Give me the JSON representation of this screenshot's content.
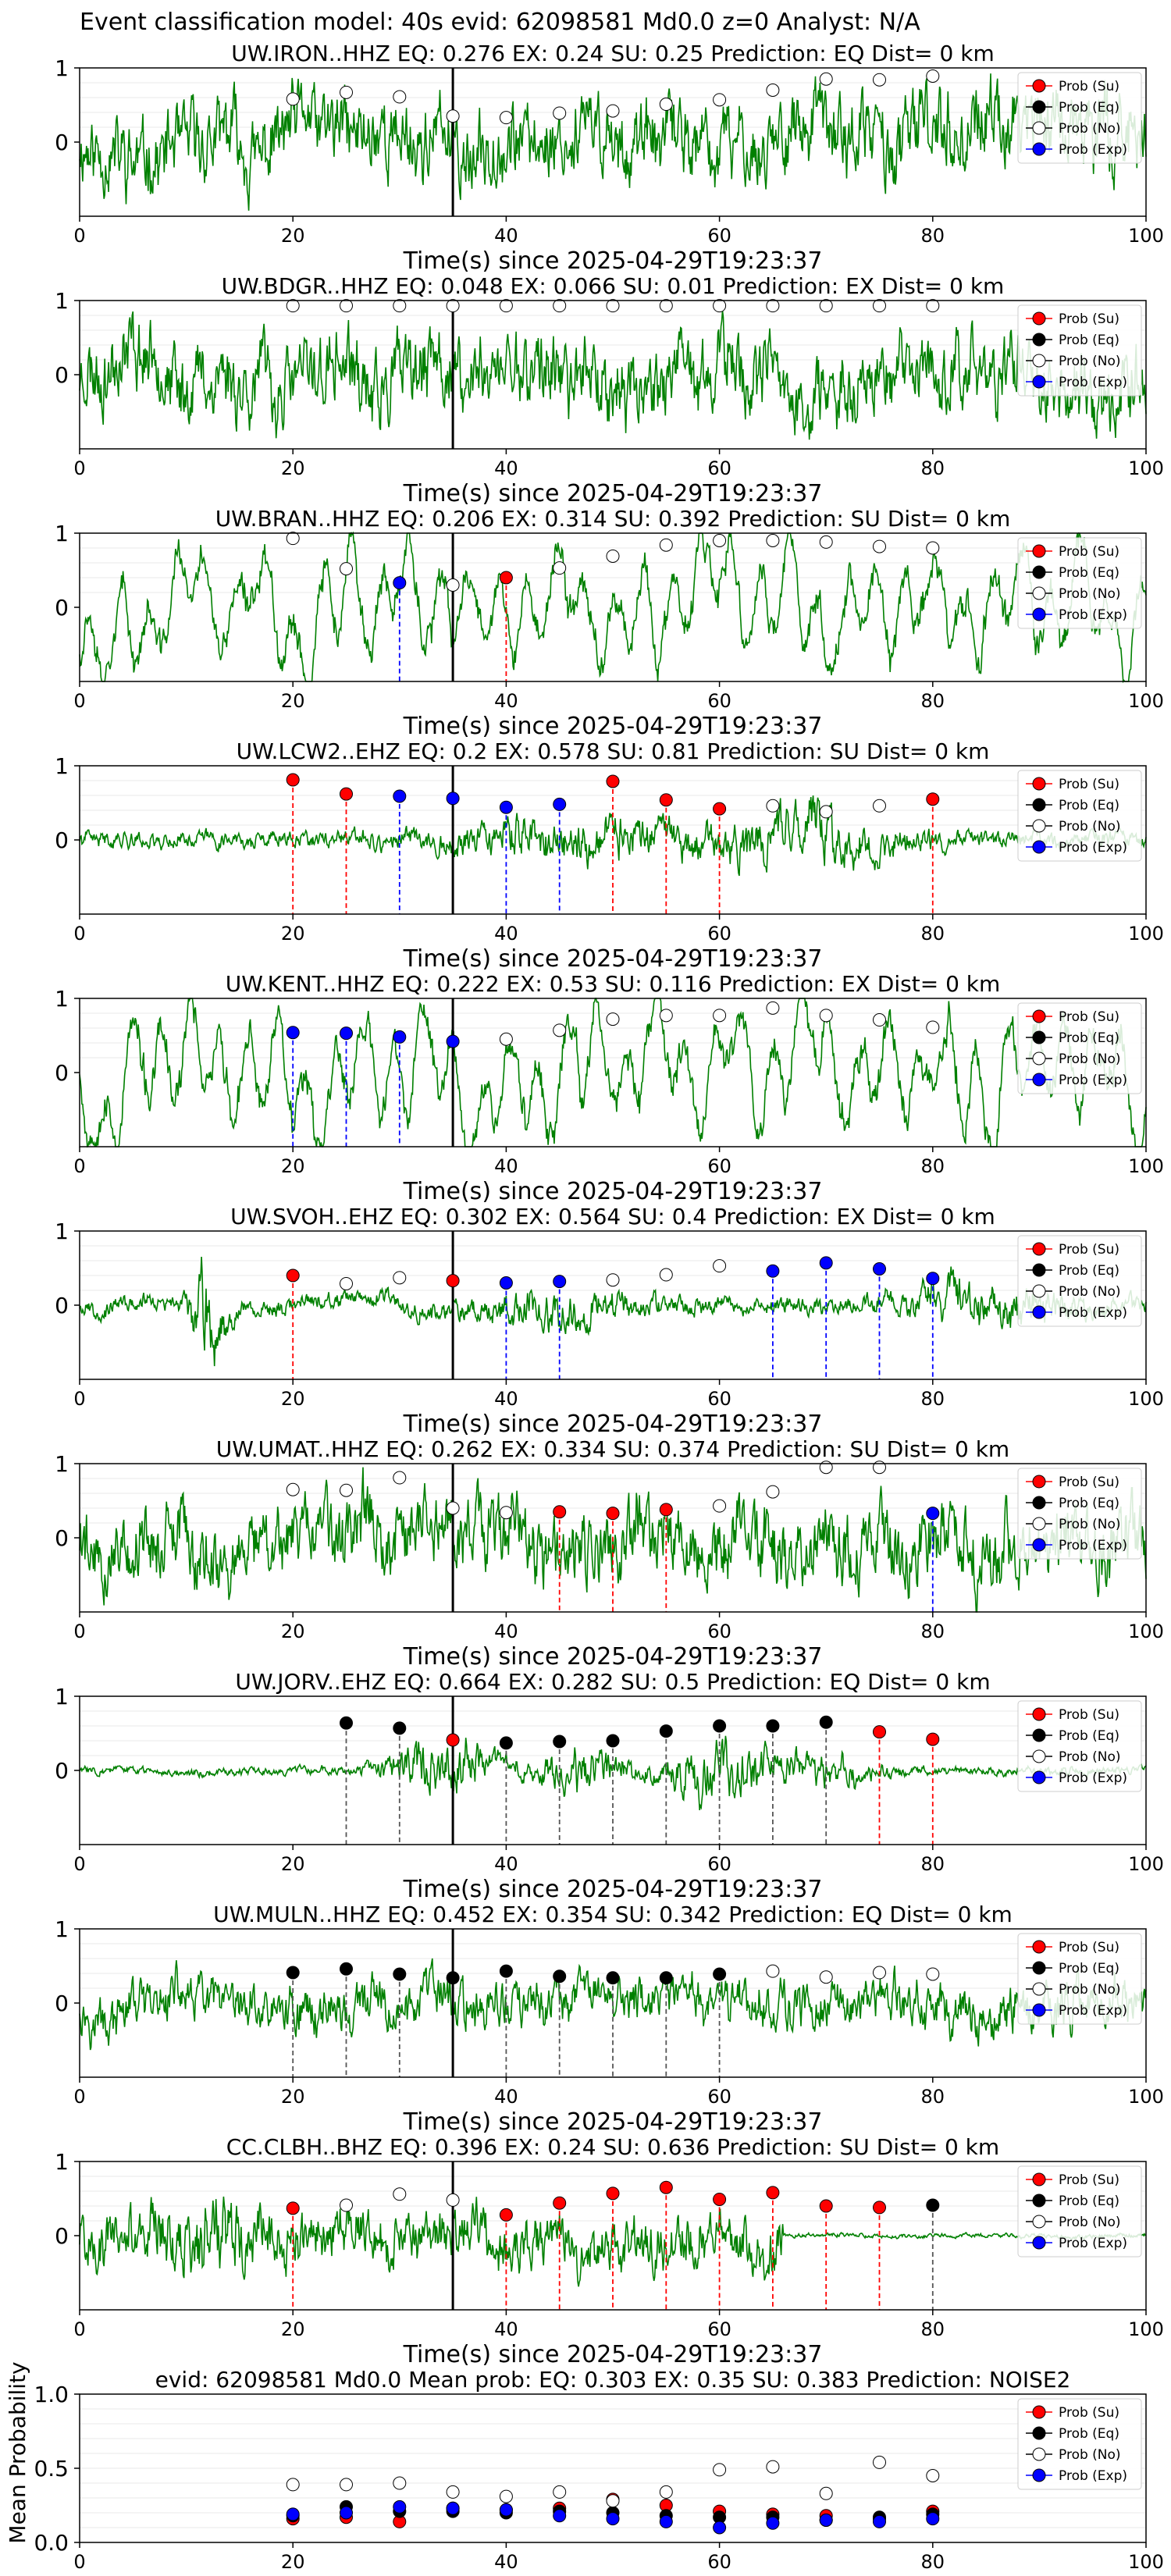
{
  "suptitle": "Event classification model: 40s evid: 62098581 Md0.0 z=0 Analyst: N/A",
  "colors": {
    "waveform": "#008000",
    "su": "#ff0000",
    "eq": "#000000",
    "no": "#ffffff",
    "exp": "#0000ff",
    "pick": "#000000"
  },
  "legend_labels": [
    "Prob (Su)",
    "Prob (Eq)",
    "Prob (No)",
    "Prob (Exp)"
  ],
  "chart_data": [
    {
      "type": "line",
      "title": "UW.IRON..HHZ   EQ: 0.276  EX: 0.24  SU: 0.25   Prediction: EQ    Dist= 0 km",
      "xlabel": "Time(s) since 2025-04-29T19:23:37",
      "xlim": [
        0,
        100
      ],
      "xticks": [
        0,
        20,
        40,
        60,
        80,
        100
      ],
      "yticks": [
        0,
        1
      ],
      "amp": 0.75,
      "style": "noise",
      "seed": 11,
      "pick": 35,
      "legend": "upper right",
      "markers": [
        {
          "x": 20,
          "p": 0.58,
          "c": "no"
        },
        {
          "x": 25,
          "p": 0.67,
          "c": "no"
        },
        {
          "x": 30,
          "p": 0.61,
          "c": "no"
        },
        {
          "x": 35,
          "p": 0.35,
          "c": "no"
        },
        {
          "x": 40,
          "p": 0.33,
          "c": "no"
        },
        {
          "x": 45,
          "p": 0.39,
          "c": "no"
        },
        {
          "x": 50,
          "p": 0.42,
          "c": "no"
        },
        {
          "x": 55,
          "p": 0.51,
          "c": "no"
        },
        {
          "x": 60,
          "p": 0.57,
          "c": "no"
        },
        {
          "x": 65,
          "p": 0.7,
          "c": "no"
        },
        {
          "x": 70,
          "p": 0.85,
          "c": "no"
        },
        {
          "x": 75,
          "p": 0.84,
          "c": "no"
        },
        {
          "x": 80,
          "p": 0.89,
          "c": "no"
        }
      ]
    },
    {
      "type": "line",
      "title": "UW.BDGR..HHZ   EQ: 0.048  EX: 0.066  SU: 0.01   Prediction: EX    Dist= 0 km",
      "xlabel": "Time(s) since 2025-04-29T19:23:37",
      "xlim": [
        0,
        100
      ],
      "xticks": [
        0,
        20,
        40,
        60,
        80,
        100
      ],
      "yticks": [
        0,
        1
      ],
      "amp": 0.75,
      "style": "noise",
      "seed": 23,
      "pick": 35,
      "legend": "upper right",
      "markers": [
        {
          "x": 20,
          "p": 0.93,
          "c": "no"
        },
        {
          "x": 25,
          "p": 0.93,
          "c": "no"
        },
        {
          "x": 30,
          "p": 0.93,
          "c": "no"
        },
        {
          "x": 35,
          "p": 0.93,
          "c": "no"
        },
        {
          "x": 40,
          "p": 0.93,
          "c": "no"
        },
        {
          "x": 45,
          "p": 0.93,
          "c": "no"
        },
        {
          "x": 50,
          "p": 0.93,
          "c": "no"
        },
        {
          "x": 55,
          "p": 0.93,
          "c": "no"
        },
        {
          "x": 60,
          "p": 0.93,
          "c": "no"
        },
        {
          "x": 65,
          "p": 0.93,
          "c": "no"
        },
        {
          "x": 70,
          "p": 0.93,
          "c": "no"
        },
        {
          "x": 75,
          "p": 0.93,
          "c": "no"
        },
        {
          "x": 80,
          "p": 0.93,
          "c": "no"
        }
      ]
    },
    {
      "type": "line",
      "title": "UW.BRAN..HHZ   EQ: 0.206  EX: 0.314  SU: 0.392   Prediction: SU    Dist= 0 km",
      "xlabel": "Time(s) since 2025-04-29T19:23:37",
      "xlim": [
        0,
        100
      ],
      "xticks": [
        0,
        20,
        40,
        60,
        80,
        100
      ],
      "yticks": [
        0,
        1
      ],
      "amp": 0.85,
      "style": "wavy",
      "seed": 37,
      "pick": 35,
      "legend": "upper right",
      "markers": [
        {
          "x": 20,
          "p": 0.93,
          "c": "no"
        },
        {
          "x": 25,
          "p": 0.52,
          "c": "no"
        },
        {
          "x": 30,
          "p": 0.33,
          "c": "exp"
        },
        {
          "x": 35,
          "p": 0.3,
          "c": "no"
        },
        {
          "x": 40,
          "p": 0.4,
          "c": "su"
        },
        {
          "x": 45,
          "p": 0.53,
          "c": "no"
        },
        {
          "x": 50,
          "p": 0.69,
          "c": "no"
        },
        {
          "x": 55,
          "p": 0.84,
          "c": "no"
        },
        {
          "x": 60,
          "p": 0.9,
          "c": "no"
        },
        {
          "x": 65,
          "p": 0.9,
          "c": "no"
        },
        {
          "x": 70,
          "p": 0.88,
          "c": "no"
        },
        {
          "x": 75,
          "p": 0.82,
          "c": "no"
        },
        {
          "x": 80,
          "p": 0.8,
          "c": "no"
        }
      ]
    },
    {
      "type": "line",
      "title": "UW.LCW2..EHZ   EQ: 0.2  EX: 0.578  SU: 0.81   Prediction: SU    Dist= 0 km",
      "xlabel": "Time(s) since 2025-04-29T19:23:37",
      "xlim": [
        0,
        100
      ],
      "xticks": [
        0,
        20,
        40,
        60,
        80,
        100
      ],
      "yticks": [
        0,
        1
      ],
      "amp": 0.45,
      "style": "quiet",
      "seed": 41,
      "pick": 35,
      "legend": "upper right",
      "markers": [
        {
          "x": 20,
          "p": 0.81,
          "c": "su"
        },
        {
          "x": 25,
          "p": 0.62,
          "c": "su"
        },
        {
          "x": 30,
          "p": 0.59,
          "c": "exp"
        },
        {
          "x": 35,
          "p": 0.56,
          "c": "exp"
        },
        {
          "x": 40,
          "p": 0.44,
          "c": "exp"
        },
        {
          "x": 45,
          "p": 0.48,
          "c": "exp"
        },
        {
          "x": 50,
          "p": 0.79,
          "c": "su"
        },
        {
          "x": 55,
          "p": 0.54,
          "c": "su"
        },
        {
          "x": 60,
          "p": 0.42,
          "c": "su"
        },
        {
          "x": 65,
          "p": 0.46,
          "c": "no"
        },
        {
          "x": 70,
          "p": 0.38,
          "c": "no"
        },
        {
          "x": 75,
          "p": 0.46,
          "c": "no"
        },
        {
          "x": 80,
          "p": 0.55,
          "c": "su"
        }
      ]
    },
    {
      "type": "line",
      "title": "UW.KENT..HHZ   EQ: 0.222  EX: 0.53  SU: 0.116   Prediction: EX    Dist= 0 km",
      "xlabel": "Time(s) since 2025-04-29T19:23:37",
      "xlim": [
        0,
        100
      ],
      "xticks": [
        0,
        20,
        40,
        60,
        80,
        100
      ],
      "yticks": [
        0,
        1
      ],
      "amp": 0.9,
      "style": "wavy",
      "seed": 53,
      "pick": 35,
      "legend": "upper right",
      "markers": [
        {
          "x": 20,
          "p": 0.54,
          "c": "exp"
        },
        {
          "x": 25,
          "p": 0.53,
          "c": "exp"
        },
        {
          "x": 30,
          "p": 0.48,
          "c": "exp"
        },
        {
          "x": 35,
          "p": 0.42,
          "c": "exp"
        },
        {
          "x": 40,
          "p": 0.45,
          "c": "no"
        },
        {
          "x": 45,
          "p": 0.57,
          "c": "no"
        },
        {
          "x": 50,
          "p": 0.72,
          "c": "no"
        },
        {
          "x": 55,
          "p": 0.77,
          "c": "no"
        },
        {
          "x": 60,
          "p": 0.77,
          "c": "no"
        },
        {
          "x": 65,
          "p": 0.87,
          "c": "no"
        },
        {
          "x": 70,
          "p": 0.77,
          "c": "no"
        },
        {
          "x": 75,
          "p": 0.71,
          "c": "no"
        },
        {
          "x": 80,
          "p": 0.61,
          "c": "no"
        }
      ]
    },
    {
      "type": "line",
      "title": "UW.SVOH..EHZ   EQ: 0.302  EX: 0.564  SU: 0.4   Prediction: EX    Dist= 0 km",
      "xlabel": "Time(s) since 2025-04-29T19:23:37",
      "xlim": [
        0,
        100
      ],
      "xticks": [
        0,
        20,
        40,
        60,
        80,
        100
      ],
      "yticks": [
        0,
        1
      ],
      "amp": 0.35,
      "style": "burst",
      "seed": 67,
      "pick": 35,
      "legend": "upper right",
      "markers": [
        {
          "x": 20,
          "p": 0.4,
          "c": "su"
        },
        {
          "x": 25,
          "p": 0.29,
          "c": "no"
        },
        {
          "x": 30,
          "p": 0.37,
          "c": "no"
        },
        {
          "x": 35,
          "p": 0.33,
          "c": "su"
        },
        {
          "x": 40,
          "p": 0.3,
          "c": "exp"
        },
        {
          "x": 45,
          "p": 0.32,
          "c": "exp"
        },
        {
          "x": 50,
          "p": 0.34,
          "c": "no"
        },
        {
          "x": 55,
          "p": 0.41,
          "c": "no"
        },
        {
          "x": 60,
          "p": 0.53,
          "c": "no"
        },
        {
          "x": 65,
          "p": 0.46,
          "c": "exp"
        },
        {
          "x": 70,
          "p": 0.57,
          "c": "exp"
        },
        {
          "x": 75,
          "p": 0.49,
          "c": "exp"
        },
        {
          "x": 80,
          "p": 0.36,
          "c": "exp"
        }
      ]
    },
    {
      "type": "line",
      "title": "UW.UMAT..HHZ   EQ: 0.262  EX: 0.334  SU: 0.374   Prediction: SU    Dist= 0 km",
      "xlabel": "Time(s) since 2025-04-29T19:23:37",
      "xlim": [
        0,
        100
      ],
      "xticks": [
        0,
        20,
        40,
        60,
        80,
        100
      ],
      "yticks": [
        0,
        1
      ],
      "amp": 0.7,
      "style": "noise",
      "seed": 79,
      "pick": 35,
      "legend": "upper right",
      "markers": [
        {
          "x": 20,
          "p": 0.65,
          "c": "no"
        },
        {
          "x": 25,
          "p": 0.64,
          "c": "no"
        },
        {
          "x": 30,
          "p": 0.81,
          "c": "no"
        },
        {
          "x": 35,
          "p": 0.4,
          "c": "no"
        },
        {
          "x": 40,
          "p": 0.34,
          "c": "no"
        },
        {
          "x": 45,
          "p": 0.35,
          "c": "su"
        },
        {
          "x": 50,
          "p": 0.33,
          "c": "su"
        },
        {
          "x": 55,
          "p": 0.38,
          "c": "su"
        },
        {
          "x": 60,
          "p": 0.43,
          "c": "no"
        },
        {
          "x": 65,
          "p": 0.62,
          "c": "no"
        },
        {
          "x": 70,
          "p": 0.95,
          "c": "no"
        },
        {
          "x": 75,
          "p": 0.95,
          "c": "no"
        },
        {
          "x": 80,
          "p": 0.33,
          "c": "exp"
        }
      ]
    },
    {
      "type": "line",
      "title": "UW.JORV..EHZ   EQ: 0.664  EX: 0.282  SU: 0.5   Prediction: EQ    Dist= 0 km",
      "xlabel": "Time(s) since 2025-04-29T19:23:37",
      "xlim": [
        0,
        100
      ],
      "xticks": [
        0,
        20,
        40,
        60,
        80,
        100
      ],
      "yticks": [
        0,
        1
      ],
      "amp": 0.3,
      "style": "event",
      "seed": 83,
      "pick": 35,
      "legend": "upper right",
      "markers": [
        {
          "x": 25,
          "p": 0.64,
          "c": "eq"
        },
        {
          "x": 30,
          "p": 0.57,
          "c": "eq"
        },
        {
          "x": 35,
          "p": 0.41,
          "c": "su"
        },
        {
          "x": 40,
          "p": 0.37,
          "c": "eq"
        },
        {
          "x": 45,
          "p": 0.39,
          "c": "eq"
        },
        {
          "x": 50,
          "p": 0.4,
          "c": "eq"
        },
        {
          "x": 55,
          "p": 0.53,
          "c": "eq"
        },
        {
          "x": 60,
          "p": 0.6,
          "c": "eq"
        },
        {
          "x": 65,
          "p": 0.6,
          "c": "eq"
        },
        {
          "x": 70,
          "p": 0.65,
          "c": "eq"
        },
        {
          "x": 75,
          "p": 0.52,
          "c": "su"
        },
        {
          "x": 80,
          "p": 0.42,
          "c": "su"
        }
      ]
    },
    {
      "type": "line",
      "title": "UW.MULN..HHZ   EQ: 0.452  EX: 0.354  SU: 0.342   Prediction: EQ    Dist= 0 km",
      "xlabel": "Time(s) since 2025-04-29T19:23:37",
      "xlim": [
        0,
        100
      ],
      "xticks": [
        0,
        20,
        40,
        60,
        80,
        100
      ],
      "yticks": [
        0,
        1
      ],
      "amp": 0.45,
      "style": "noise",
      "seed": 97,
      "pick": 35,
      "legend": "upper right",
      "markers": [
        {
          "x": 20,
          "p": 0.41,
          "c": "eq"
        },
        {
          "x": 25,
          "p": 0.46,
          "c": "eq"
        },
        {
          "x": 30,
          "p": 0.39,
          "c": "eq"
        },
        {
          "x": 35,
          "p": 0.34,
          "c": "eq"
        },
        {
          "x": 40,
          "p": 0.43,
          "c": "eq"
        },
        {
          "x": 45,
          "p": 0.36,
          "c": "eq"
        },
        {
          "x": 50,
          "p": 0.34,
          "c": "eq"
        },
        {
          "x": 55,
          "p": 0.34,
          "c": "eq"
        },
        {
          "x": 60,
          "p": 0.39,
          "c": "eq"
        },
        {
          "x": 65,
          "p": 0.43,
          "c": "no"
        },
        {
          "x": 70,
          "p": 0.35,
          "c": "no"
        },
        {
          "x": 75,
          "p": 0.41,
          "c": "no"
        },
        {
          "x": 80,
          "p": 0.39,
          "c": "no"
        }
      ]
    },
    {
      "type": "line",
      "title": "CC.CLBH..BHZ   EQ: 0.396  EX: 0.24  SU: 0.636   Prediction: SU    Dist= 0 km",
      "xlabel": "Time(s) since 2025-04-29T19:23:37",
      "xlim": [
        0,
        100
      ],
      "xticks": [
        0,
        20,
        40,
        60,
        80,
        100
      ],
      "yticks": [
        0,
        1
      ],
      "amp": 0.5,
      "style": "decay",
      "seed": 101,
      "pick": 35,
      "legend": "upper right",
      "markers": [
        {
          "x": 20,
          "p": 0.37,
          "c": "su"
        },
        {
          "x": 25,
          "p": 0.41,
          "c": "no"
        },
        {
          "x": 30,
          "p": 0.56,
          "c": "no"
        },
        {
          "x": 35,
          "p": 0.48,
          "c": "no"
        },
        {
          "x": 40,
          "p": 0.28,
          "c": "su"
        },
        {
          "x": 45,
          "p": 0.44,
          "c": "su"
        },
        {
          "x": 50,
          "p": 0.57,
          "c": "su"
        },
        {
          "x": 55,
          "p": 0.65,
          "c": "su"
        },
        {
          "x": 60,
          "p": 0.49,
          "c": "su"
        },
        {
          "x": 65,
          "p": 0.58,
          "c": "su"
        },
        {
          "x": 70,
          "p": 0.4,
          "c": "su"
        },
        {
          "x": 75,
          "p": 0.38,
          "c": "su"
        },
        {
          "x": 80,
          "p": 0.41,
          "c": "eq"
        }
      ]
    },
    {
      "type": "scatter",
      "title": "evid: 62098581  Md0.0   Mean prob:   EQ: 0.303  EX: 0.35  SU: 0.383   Prediction: NOISE2",
      "ylabel": "Mean Probability",
      "xlim": [
        0,
        100
      ],
      "ylim": [
        0,
        1
      ],
      "xticks": [
        0,
        20,
        40,
        60,
        80,
        100
      ],
      "yticks": [
        0,
        0.5,
        1
      ],
      "ytick_labels": [
        "0.0",
        "0.5",
        "1.0"
      ],
      "legend": "upper right",
      "series": [
        {
          "name": "Prob (Su)",
          "c": "su",
          "x": [
            20,
            25,
            30,
            35,
            40,
            45,
            50,
            55,
            60,
            65,
            70,
            75,
            80
          ],
          "y": [
            0.16,
            0.17,
            0.14,
            0.23,
            0.22,
            0.23,
            0.29,
            0.25,
            0.21,
            0.19,
            0.18,
            0.16,
            0.21
          ]
        },
        {
          "name": "Prob (Eq)",
          "c": "eq",
          "x": [
            20,
            25,
            30,
            35,
            40,
            45,
            50,
            55,
            60,
            65,
            70,
            75,
            80
          ],
          "y": [
            0.18,
            0.24,
            0.21,
            0.21,
            0.2,
            0.21,
            0.2,
            0.18,
            0.17,
            0.17,
            0.15,
            0.17,
            0.19
          ]
        },
        {
          "name": "Prob (No)",
          "c": "no",
          "x": [
            20,
            25,
            30,
            35,
            40,
            45,
            50,
            55,
            60,
            65,
            70,
            75,
            80
          ],
          "y": [
            0.39,
            0.39,
            0.4,
            0.34,
            0.31,
            0.34,
            0.28,
            0.34,
            0.49,
            0.51,
            0.33,
            0.54,
            0.45
          ]
        },
        {
          "name": "Prob (Exp)",
          "c": "exp",
          "x": [
            20,
            25,
            30,
            35,
            40,
            45,
            50,
            55,
            60,
            65,
            70,
            75,
            80
          ],
          "y": [
            0.19,
            0.2,
            0.24,
            0.23,
            0.22,
            0.18,
            0.16,
            0.14,
            0.1,
            0.13,
            0.15,
            0.14,
            0.16
          ]
        }
      ]
    }
  ]
}
